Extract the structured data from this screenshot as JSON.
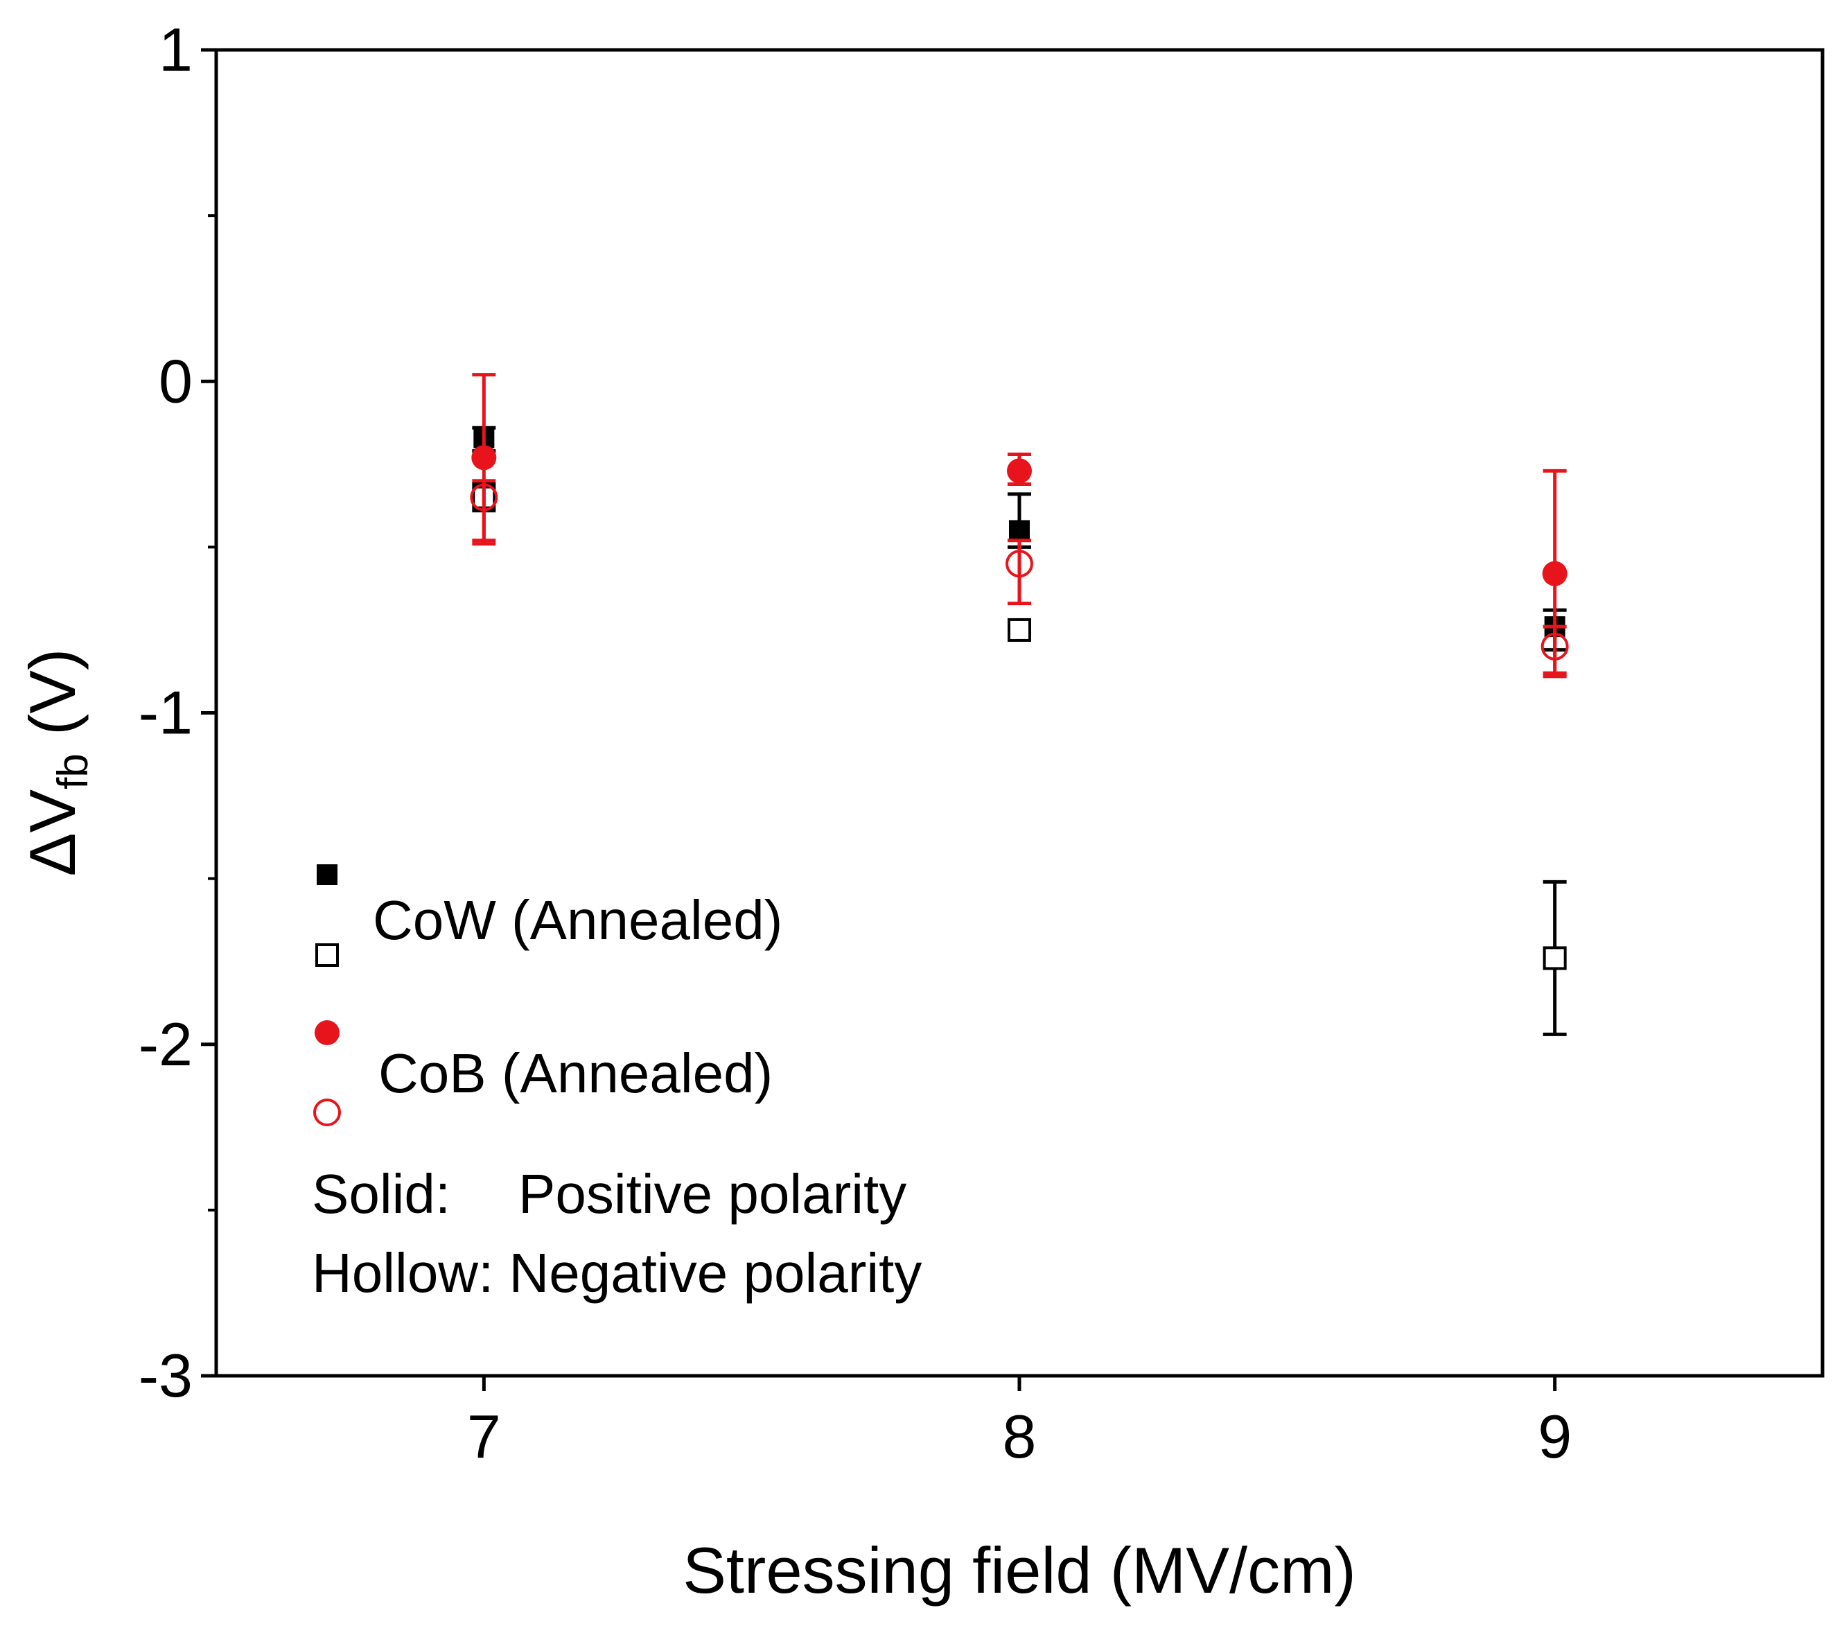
{
  "chart_data": {
    "type": "scatter",
    "xlabel": "Stressing field (MV/cm)",
    "ylabel_main": "ΔV",
    "ylabel_sub": "fb",
    "ylabel_unit": " (V)",
    "xlim": [
      6.5,
      9.5
    ],
    "ylim": [
      -3,
      1
    ],
    "x_ticks": [
      7,
      8,
      9
    ],
    "x_tick_labels": [
      "7",
      "8",
      "9"
    ],
    "y_ticks": [
      -3,
      -2,
      -1,
      0,
      1
    ],
    "y_tick_labels": [
      "-3",
      "-2",
      "-1",
      "0",
      "1"
    ],
    "y_minor_ticks": [
      -2.5,
      -1.5,
      -0.5,
      0.5
    ],
    "grid": false,
    "legend": {
      "entries": [
        {
          "label": "CoW (Annealed)"
        },
        {
          "label": "CoB (Annealed)"
        }
      ],
      "notes": [
        "Solid:",
        "Positive polarity",
        "Hollow: Negative polarity"
      ]
    },
    "series": [
      {
        "key": "cow_positive",
        "marker": "square",
        "filled": true,
        "color": "#000000",
        "points": [
          {
            "x": 7,
            "y": -0.17,
            "err_low": -0.21,
            "err_high": -0.14
          },
          {
            "x": 8,
            "y": -0.45,
            "err_low": -0.5,
            "err_high": -0.34
          },
          {
            "x": 9,
            "y": -0.74,
            "err_low": -0.81,
            "err_high": -0.69
          }
        ]
      },
      {
        "key": "cow_negative",
        "marker": "square",
        "filled": false,
        "color": "#000000",
        "points": [
          {
            "x": 7,
            "y": -0.35,
            "err_low": -0.39,
            "err_high": -0.31
          },
          {
            "x": 8,
            "y": -0.75,
            "err_low": -0.78,
            "err_high": -0.72
          },
          {
            "x": 9,
            "y": -1.74,
            "err_low": -1.97,
            "err_high": -1.51
          }
        ]
      },
      {
        "key": "cob_positive",
        "marker": "circle",
        "filled": true,
        "color": "#e8141c",
        "points": [
          {
            "x": 7,
            "y": -0.23,
            "err_low": -0.49,
            "err_high": 0.02
          },
          {
            "x": 8,
            "y": -0.27,
            "err_low": -0.31,
            "err_high": -0.22
          },
          {
            "x": 9,
            "y": -0.58,
            "err_low": -0.89,
            "err_high": -0.27
          }
        ]
      },
      {
        "key": "cob_negative",
        "marker": "circle",
        "filled": false,
        "color": "#e8141c",
        "points": [
          {
            "x": 7,
            "y": -0.35,
            "err_low": -0.48,
            "err_high": -0.3
          },
          {
            "x": 8,
            "y": -0.55,
            "err_low": -0.67,
            "err_high": -0.48
          },
          {
            "x": 9,
            "y": -0.8,
            "err_low": -0.88,
            "err_high": -0.74
          }
        ]
      }
    ]
  }
}
